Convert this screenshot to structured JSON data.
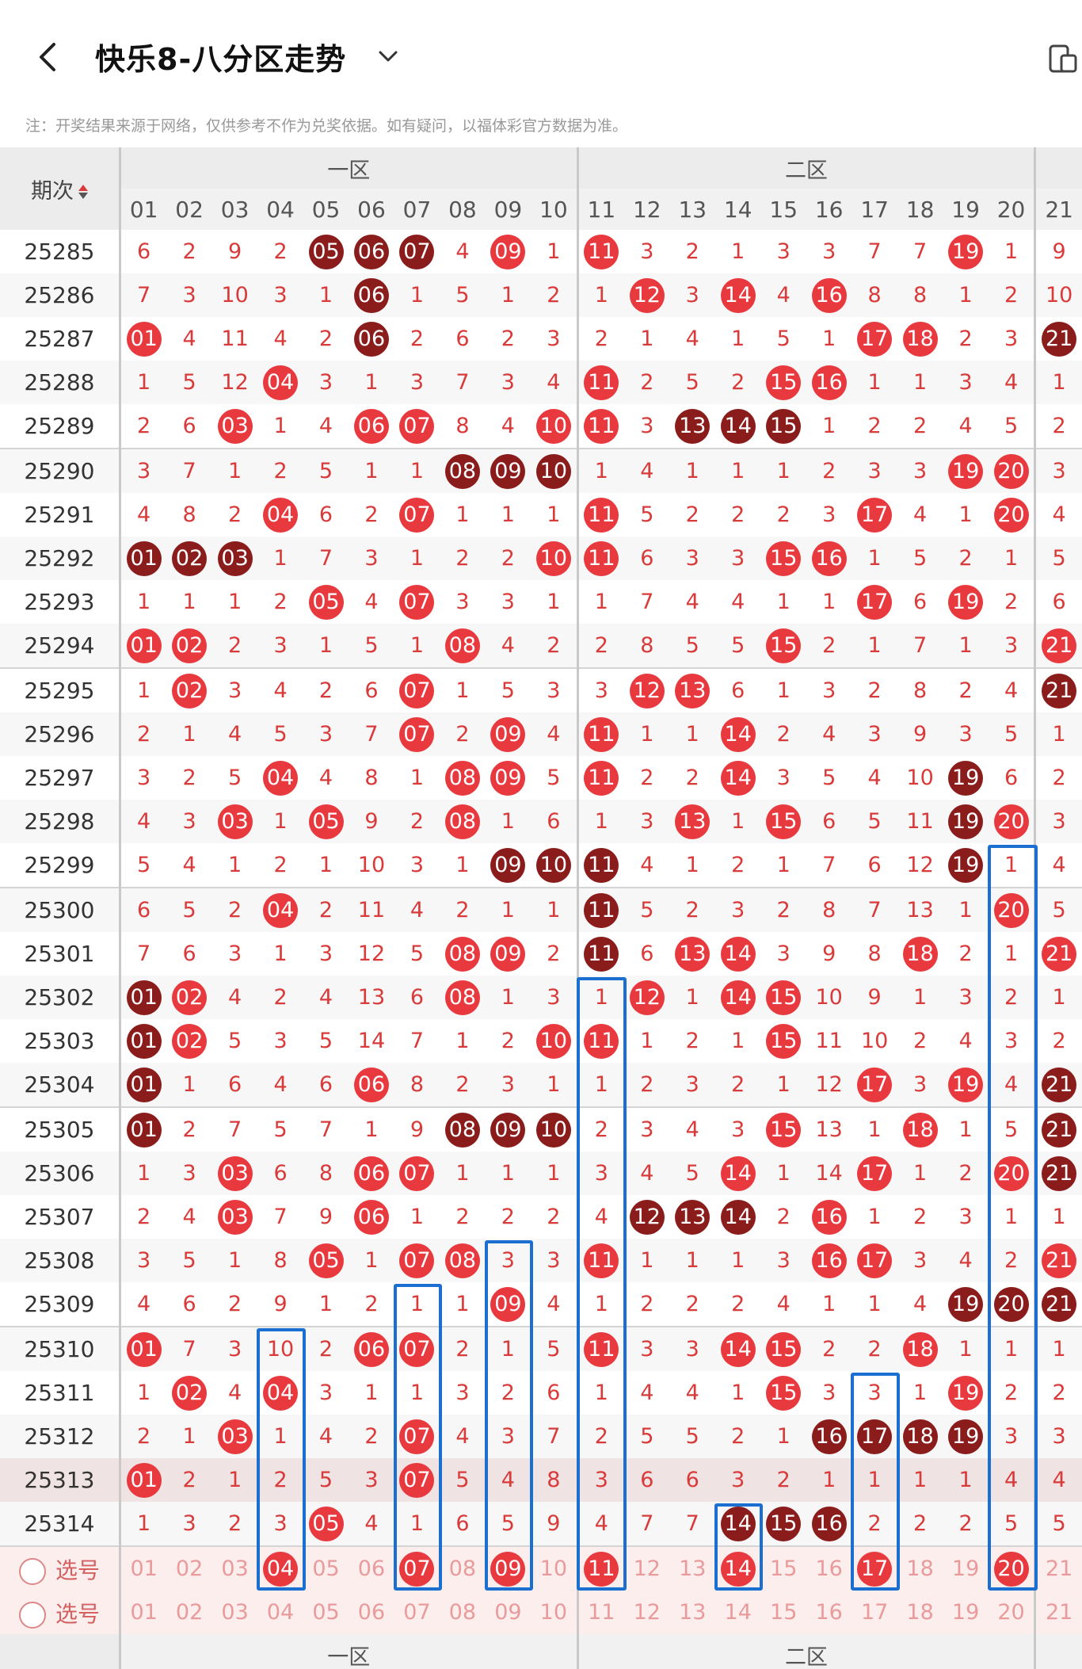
{
  "header": {
    "title": "快乐8-八分区走势",
    "back_icon": "back-arrow-icon",
    "dropdown_icon": "chevron-down-icon",
    "device_icon": "device-switch-icon"
  },
  "note": "注：开奖结果来源于网络，仅供参考不作为兑奖依据。如有疑问，以福体彩官方数据为准。",
  "table": {
    "period_header": "期次",
    "zones": [
      "一区",
      "二区"
    ],
    "columns": [
      "01",
      "02",
      "03",
      "04",
      "05",
      "06",
      "07",
      "08",
      "09",
      "10",
      "11",
      "12",
      "13",
      "14",
      "15",
      "16",
      "17",
      "18",
      "19",
      "20",
      "21"
    ],
    "colors": {
      "hit": "#e8393f",
      "hot": "#8b1c1c",
      "select_box": "#1a6fd0"
    },
    "rows": [
      {
        "period": "25285",
        "cells": [
          "6",
          "2",
          "9",
          "2",
          "d05",
          "d06",
          "d07",
          "4",
          "r09",
          "1",
          "r11",
          "3",
          "2",
          "1",
          "3",
          "3",
          "7",
          "7",
          "r19",
          "1",
          "9"
        ]
      },
      {
        "period": "25286",
        "cells": [
          "7",
          "3",
          "10",
          "3",
          "1",
          "d06",
          "1",
          "5",
          "1",
          "2",
          "1",
          "r12",
          "3",
          "r14",
          "4",
          "r16",
          "8",
          "8",
          "1",
          "2",
          "10"
        ]
      },
      {
        "period": "25287",
        "cells": [
          "r01",
          "4",
          "11",
          "4",
          "2",
          "d06",
          "2",
          "6",
          "2",
          "3",
          "2",
          "1",
          "4",
          "1",
          "5",
          "1",
          "r17",
          "r18",
          "2",
          "3",
          "d21"
        ]
      },
      {
        "period": "25288",
        "cells": [
          "1",
          "5",
          "12",
          "r04",
          "3",
          "1",
          "3",
          "7",
          "3",
          "4",
          "r11",
          "2",
          "5",
          "2",
          "r15",
          "r16",
          "1",
          "1",
          "3",
          "4",
          "1"
        ]
      },
      {
        "period": "25289",
        "cells": [
          "2",
          "6",
          "r03",
          "1",
          "4",
          "r06",
          "r07",
          "8",
          "4",
          "r10",
          "r11",
          "3",
          "d13",
          "d14",
          "d15",
          "1",
          "2",
          "2",
          "4",
          "5",
          "2"
        ]
      },
      {
        "period": "25290",
        "cells": [
          "3",
          "7",
          "1",
          "2",
          "5",
          "1",
          "1",
          "d08",
          "d09",
          "d10",
          "1",
          "4",
          "1",
          "1",
          "1",
          "2",
          "3",
          "3",
          "r19",
          "r20",
          "3"
        ]
      },
      {
        "period": "25291",
        "cells": [
          "4",
          "8",
          "2",
          "r04",
          "6",
          "2",
          "r07",
          "1",
          "1",
          "1",
          "r11",
          "5",
          "2",
          "2",
          "2",
          "3",
          "r17",
          "4",
          "1",
          "r20",
          "4"
        ]
      },
      {
        "period": "25292",
        "cells": [
          "d01",
          "d02",
          "d03",
          "1",
          "7",
          "3",
          "1",
          "2",
          "2",
          "r10",
          "r11",
          "6",
          "3",
          "3",
          "r15",
          "r16",
          "1",
          "5",
          "2",
          "1",
          "5"
        ]
      },
      {
        "period": "25293",
        "cells": [
          "1",
          "1",
          "1",
          "2",
          "r05",
          "4",
          "r07",
          "3",
          "3",
          "1",
          "1",
          "7",
          "4",
          "4",
          "1",
          "1",
          "r17",
          "6",
          "r19",
          "2",
          "6"
        ]
      },
      {
        "period": "25294",
        "cells": [
          "r01",
          "r02",
          "2",
          "3",
          "1",
          "5",
          "1",
          "r08",
          "4",
          "2",
          "2",
          "8",
          "5",
          "5",
          "r15",
          "2",
          "1",
          "7",
          "1",
          "3",
          "r21"
        ]
      },
      {
        "period": "25295",
        "cells": [
          "1",
          "r02",
          "3",
          "4",
          "2",
          "6",
          "r07",
          "1",
          "5",
          "3",
          "3",
          "r12",
          "r13",
          "6",
          "1",
          "3",
          "2",
          "8",
          "2",
          "4",
          "d21"
        ]
      },
      {
        "period": "25296",
        "cells": [
          "2",
          "1",
          "4",
          "5",
          "3",
          "7",
          "r07",
          "2",
          "r09",
          "4",
          "r11",
          "1",
          "1",
          "r14",
          "2",
          "4",
          "3",
          "9",
          "3",
          "5",
          "1"
        ]
      },
      {
        "period": "25297",
        "cells": [
          "3",
          "2",
          "5",
          "r04",
          "4",
          "8",
          "1",
          "r08",
          "r09",
          "5",
          "r11",
          "2",
          "2",
          "r14",
          "3",
          "5",
          "4",
          "10",
          "d19",
          "6",
          "2"
        ]
      },
      {
        "period": "25298",
        "cells": [
          "4",
          "3",
          "r03",
          "1",
          "r05",
          "9",
          "2",
          "r08",
          "1",
          "6",
          "1",
          "3",
          "r13",
          "1",
          "r15",
          "6",
          "5",
          "11",
          "d19",
          "r20",
          "3"
        ]
      },
      {
        "period": "25299",
        "cells": [
          "5",
          "4",
          "1",
          "2",
          "1",
          "10",
          "3",
          "1",
          "d09",
          "d10",
          "d11",
          "4",
          "1",
          "2",
          "1",
          "7",
          "6",
          "12",
          "d19",
          "1",
          "4"
        ]
      },
      {
        "period": "25300",
        "cells": [
          "6",
          "5",
          "2",
          "r04",
          "2",
          "11",
          "4",
          "2",
          "1",
          "1",
          "d11",
          "5",
          "2",
          "3",
          "2",
          "8",
          "7",
          "13",
          "1",
          "r20",
          "5"
        ]
      },
      {
        "period": "25301",
        "cells": [
          "7",
          "6",
          "3",
          "1",
          "3",
          "12",
          "5",
          "r08",
          "r09",
          "2",
          "d11",
          "6",
          "r13",
          "r14",
          "3",
          "9",
          "8",
          "r18",
          "2",
          "1",
          "r21"
        ]
      },
      {
        "period": "25302",
        "cells": [
          "d01",
          "r02",
          "4",
          "2",
          "4",
          "13",
          "6",
          "r08",
          "1",
          "3",
          "1",
          "r12",
          "1",
          "r14",
          "r15",
          "10",
          "9",
          "1",
          "3",
          "2",
          "1"
        ]
      },
      {
        "period": "25303",
        "cells": [
          "d01",
          "r02",
          "5",
          "3",
          "5",
          "14",
          "7",
          "1",
          "2",
          "r10",
          "r11",
          "1",
          "2",
          "1",
          "r15",
          "11",
          "10",
          "2",
          "4",
          "3",
          "2"
        ]
      },
      {
        "period": "25304",
        "cells": [
          "d01",
          "1",
          "6",
          "4",
          "6",
          "r06",
          "8",
          "2",
          "3",
          "1",
          "1",
          "2",
          "3",
          "2",
          "1",
          "12",
          "r17",
          "3",
          "r19",
          "4",
          "d21"
        ]
      },
      {
        "period": "25305",
        "cells": [
          "d01",
          "2",
          "7",
          "5",
          "7",
          "1",
          "9",
          "d08",
          "d09",
          "d10",
          "2",
          "3",
          "4",
          "3",
          "r15",
          "13",
          "1",
          "r18",
          "1",
          "5",
          "d21"
        ]
      },
      {
        "period": "25306",
        "cells": [
          "1",
          "3",
          "r03",
          "6",
          "8",
          "r06",
          "r07",
          "1",
          "1",
          "1",
          "3",
          "4",
          "5",
          "r14",
          "1",
          "14",
          "r17",
          "1",
          "2",
          "r20",
          "d21"
        ]
      },
      {
        "period": "25307",
        "cells": [
          "2",
          "4",
          "r03",
          "7",
          "9",
          "r06",
          "1",
          "2",
          "2",
          "2",
          "4",
          "d12",
          "d13",
          "d14",
          "2",
          "r16",
          "1",
          "2",
          "3",
          "1",
          "1"
        ]
      },
      {
        "period": "25308",
        "cells": [
          "3",
          "5",
          "1",
          "8",
          "r05",
          "1",
          "r07",
          "r08",
          "3",
          "3",
          "r11",
          "1",
          "1",
          "1",
          "3",
          "r16",
          "r17",
          "3",
          "4",
          "2",
          "r21"
        ]
      },
      {
        "period": "25309",
        "cells": [
          "4",
          "6",
          "2",
          "9",
          "1",
          "2",
          "1",
          "1",
          "r09",
          "4",
          "1",
          "2",
          "2",
          "2",
          "4",
          "1",
          "1",
          "4",
          "d19",
          "d20",
          "d21"
        ]
      },
      {
        "period": "25310",
        "cells": [
          "r01",
          "7",
          "3",
          "10",
          "2",
          "r06",
          "r07",
          "2",
          "1",
          "5",
          "r11",
          "3",
          "3",
          "r14",
          "r15",
          "2",
          "2",
          "r18",
          "1",
          "1",
          "1"
        ]
      },
      {
        "period": "25311",
        "cells": [
          "1",
          "r02",
          "4",
          "r04",
          "3",
          "1",
          "1",
          "3",
          "2",
          "6",
          "1",
          "4",
          "4",
          "1",
          "r15",
          "3",
          "3",
          "1",
          "r19",
          "2",
          "2"
        ]
      },
      {
        "period": "25312",
        "cells": [
          "2",
          "1",
          "r03",
          "1",
          "4",
          "2",
          "r07",
          "4",
          "3",
          "7",
          "2",
          "5",
          "5",
          "2",
          "1",
          "d16",
          "d17",
          "d18",
          "d19",
          "3",
          "3"
        ]
      },
      {
        "period": "25313",
        "cells": [
          "r01",
          "2",
          "1",
          "2",
          "5",
          "3",
          "r07",
          "5",
          "4",
          "8",
          "3",
          "6",
          "6",
          "3",
          "2",
          "1",
          "1",
          "1",
          "1",
          "4",
          "4"
        ]
      },
      {
        "period": "25314",
        "cells": [
          "1",
          "3",
          "2",
          "3",
          "r05",
          "4",
          "1",
          "6",
          "5",
          "9",
          "4",
          "7",
          "7",
          "d14",
          "d15",
          "d16",
          "2",
          "2",
          "2",
          "5",
          "5"
        ]
      }
    ],
    "pick_rows": [
      {
        "label": "选号",
        "selected": [
          "04",
          "07",
          "09",
          "11",
          "14",
          "17",
          "20"
        ]
      },
      {
        "label": "选号",
        "selected": []
      }
    ]
  }
}
